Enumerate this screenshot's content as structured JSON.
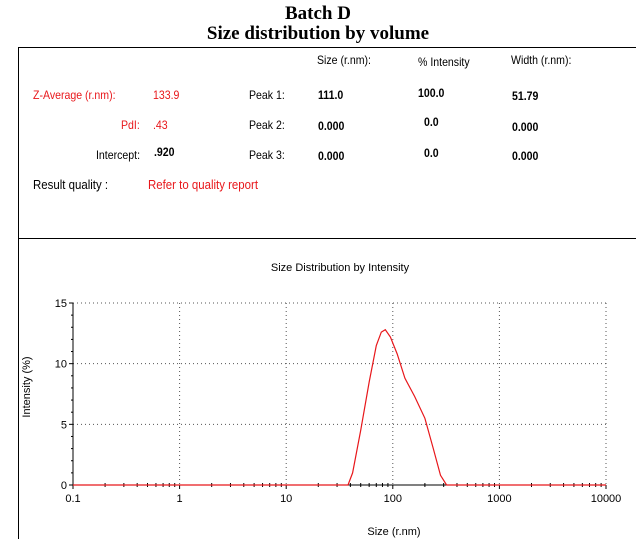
{
  "heading": {
    "line1": "Batch D",
    "line2": "Size distribution by volume"
  },
  "summary": {
    "headers": {
      "size": "Size (r.nm):",
      "intensity": "% Intensity",
      "width": "Width (r.nm):"
    },
    "z_average": {
      "label": "Z-Average (r.nm):",
      "value": "133.9"
    },
    "pdi": {
      "label": "PdI:",
      "value": ".43"
    },
    "intercept": {
      "label": "Intercept:",
      "value": ".920"
    },
    "result_quality": {
      "label": "Result quality :",
      "value": "Refer to quality report"
    },
    "peaks": [
      {
        "label": "Peak 1:",
        "size": "111.0",
        "intensity": "100.0",
        "width": "51.79"
      },
      {
        "label": "Peak 2:",
        "size": "0.000",
        "intensity": "0.0",
        "width": "0.000"
      },
      {
        "label": "Peak 3:",
        "size": "0.000",
        "intensity": "0.0",
        "width": "0.000"
      }
    ]
  },
  "colors": {
    "curve": "#e8171b",
    "label_red": "#e8171b",
    "grid": "#555555"
  },
  "chart_data": {
    "type": "line",
    "title": "Size Distribution by Intensity",
    "xlabel": "Size (r.nm)",
    "ylabel": "Intensity (%)",
    "x_scale": "log",
    "xlim": [
      0.1,
      10000
    ],
    "ylim": [
      0,
      15
    ],
    "x_ticks": [
      0.1,
      1,
      10,
      100,
      1000,
      10000
    ],
    "x_tick_labels": [
      "0.1",
      "1",
      "10",
      "100",
      "1000",
      "10000"
    ],
    "y_ticks": [
      0,
      5,
      10,
      15
    ],
    "y_tick_labels": [
      "0",
      "5",
      "10",
      "15"
    ],
    "grid": true,
    "series": [
      {
        "x": [
          0.1,
          38,
          42,
          50,
          60,
          70,
          78,
          85,
          95,
          110,
          130,
          160,
          200,
          240,
          280,
          320,
          10000
        ],
        "y": [
          0,
          0,
          1.0,
          4.5,
          8.5,
          11.5,
          12.6,
          12.8,
          12.2,
          10.8,
          8.8,
          7.3,
          5.5,
          3.0,
          0.8,
          0,
          0
        ]
      }
    ]
  }
}
